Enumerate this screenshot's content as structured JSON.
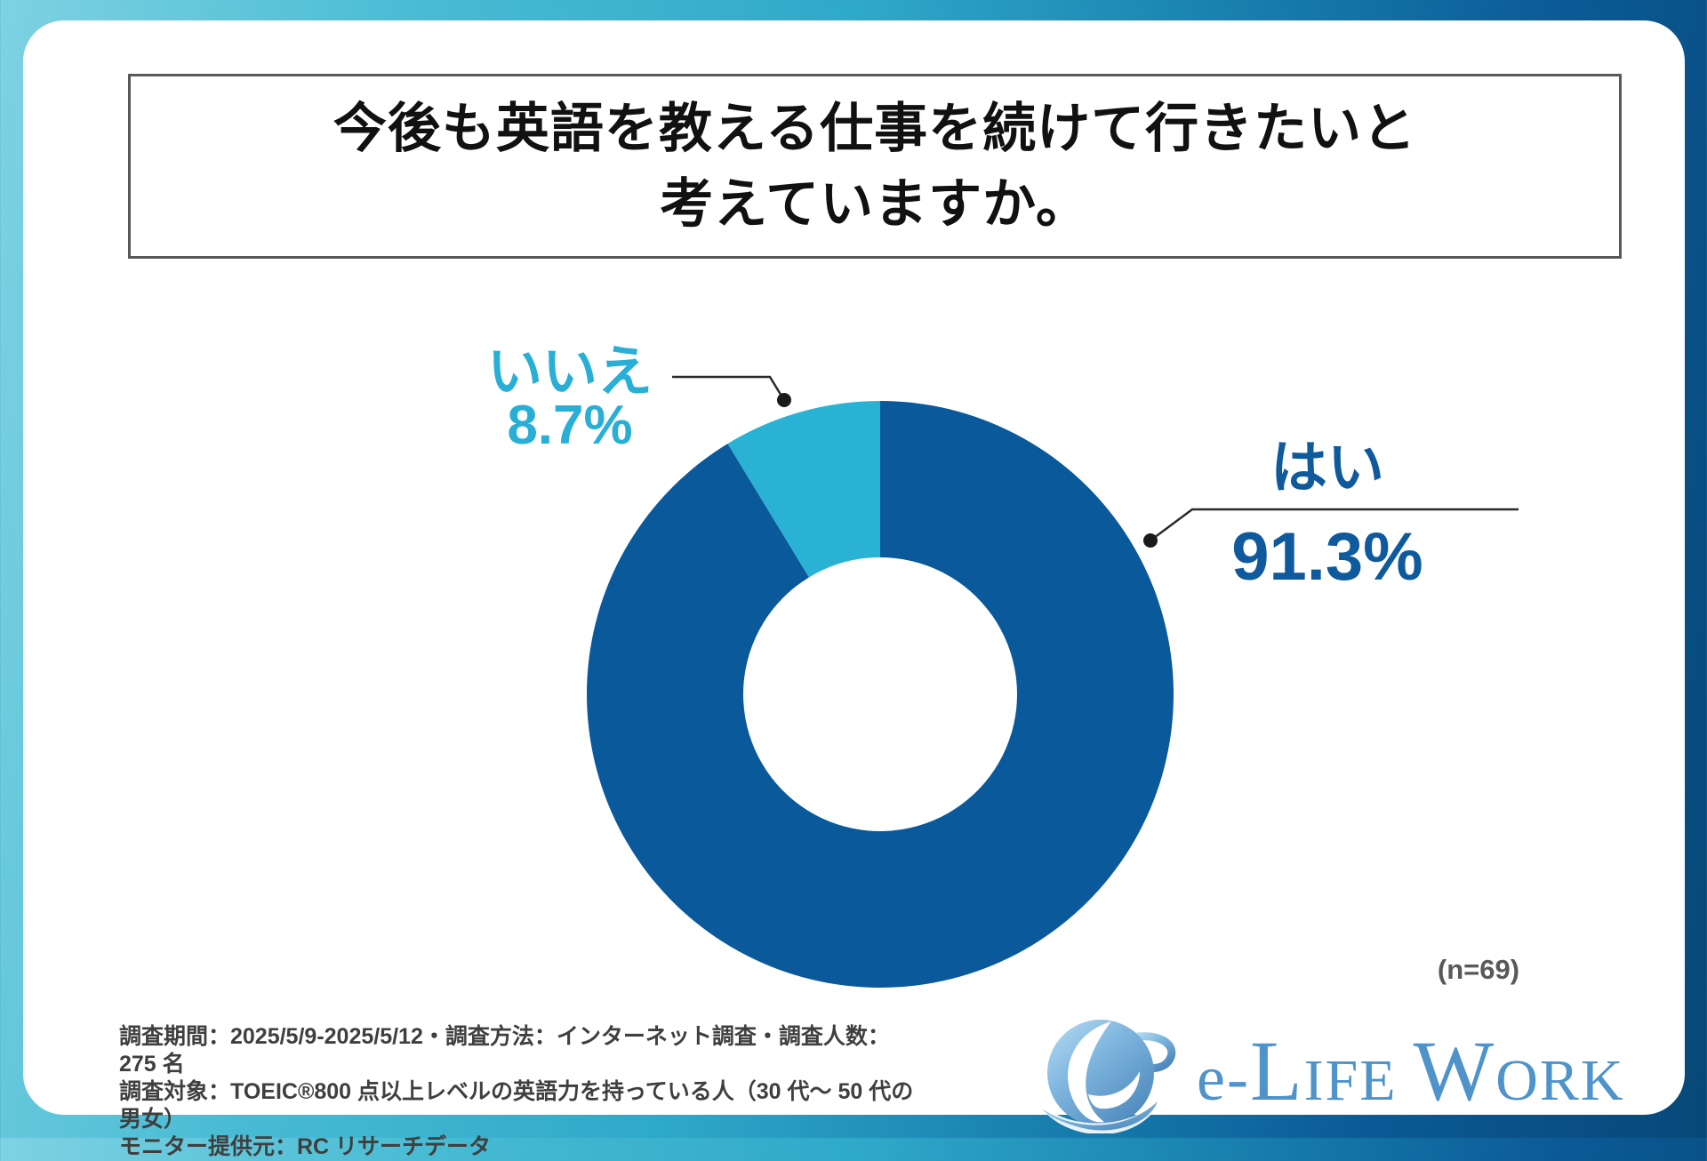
{
  "question": {
    "line1": "今後も英語を教える仕事を続けて行きたいと",
    "line2": "考えていますか。"
  },
  "chart_data": {
    "type": "pie",
    "subtype": "donut",
    "title": "今後も英語を教える仕事を続けて行きたいと考えていますか。",
    "sample_note": "(n=69)",
    "units": "%",
    "start_angle": "12-o'clock",
    "direction": "clockwise",
    "legend_style": "callout-labels",
    "segments": [
      {
        "key": "yes",
        "label": "はい",
        "value": 91.3,
        "display": "91.3%",
        "color": "#0a599b",
        "label_color": "#0e5a9c"
      },
      {
        "key": "no",
        "label": "いいえ",
        "value": 8.7,
        "display": "8.7%",
        "color": "#29b2d3",
        "label_color": "#29afd6"
      }
    ]
  },
  "footnote": {
    "line1": "調査期間：2025/5/9-2025/5/12・調査方法：インターネット調査・調査人数：275 名",
    "line2": "調査対象：TOEIC®800 点以上レベルの英語力を持っている人（30 代～ 50 代の男女）",
    "line3": "モニター提供元：RC リサーチデータ"
  },
  "logo": {
    "name": "e-LIFE WORK",
    "part_e": "e-",
    "part_l": "L",
    "part_ife": "IFE",
    "part_w": "W",
    "part_ork": "ORK",
    "color": "#4e93c9"
  }
}
